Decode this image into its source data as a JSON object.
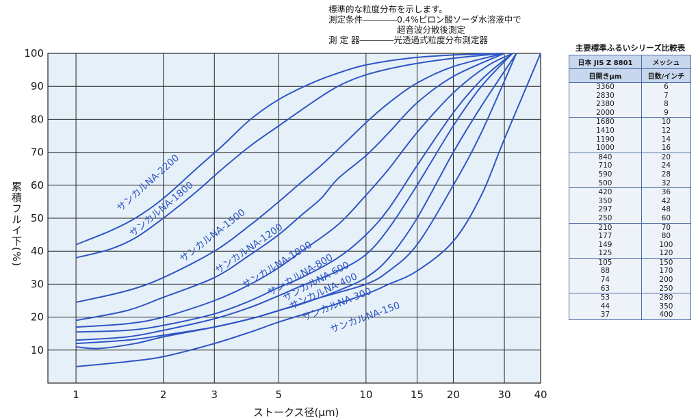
{
  "notes": {
    "line1": "標準的な粒度分布を示します。",
    "line2": "測定条件――――0.4%ピロン酸ソーダ水溶液中で",
    "line3": "　　　　　　　　超音波分散後測定",
    "line4": "測 定 器――――光透過式粒度分布測定器"
  },
  "chart_data": {
    "type": "line",
    "xlabel": "ストークス径(μm)",
    "ylabel": "累積フルイ下(%)",
    "x_scale": "log",
    "xlim": [
      0.8,
      40
    ],
    "ylim": [
      0,
      100
    ],
    "x_ticks": [
      1,
      2,
      3,
      5,
      10,
      15,
      20,
      30,
      40
    ],
    "y_ticks": [
      10,
      20,
      30,
      40,
      50,
      60,
      70,
      80,
      90,
      100
    ],
    "grid": true,
    "colors": {
      "line": "#2f55c4",
      "plot_bg": "#e6f0f8",
      "grid": "#222222"
    },
    "series": [
      {
        "name": "サンカルNA-2200",
        "points": [
          [
            1,
            42
          ],
          [
            1.3,
            46
          ],
          [
            1.6,
            50
          ],
          [
            2,
            56
          ],
          [
            2.6,
            65
          ],
          [
            3.2,
            72
          ],
          [
            4,
            80
          ],
          [
            5,
            86
          ],
          [
            6.5,
            91
          ],
          [
            8,
            94
          ],
          [
            10,
            96.5
          ],
          [
            14,
            98.5
          ],
          [
            20,
            99.5
          ],
          [
            30,
            100
          ]
        ]
      },
      {
        "name": "サンカルNA-1800",
        "points": [
          [
            1,
            38
          ],
          [
            1.3,
            40.5
          ],
          [
            1.6,
            44
          ],
          [
            2,
            50
          ],
          [
            2.6,
            58
          ],
          [
            3.2,
            65
          ],
          [
            4,
            72
          ],
          [
            5,
            78
          ],
          [
            6.5,
            85
          ],
          [
            8,
            90
          ],
          [
            10,
            93.5
          ],
          [
            14,
            96.5
          ],
          [
            20,
            98.5
          ],
          [
            30,
            100
          ]
        ]
      },
      {
        "name": "サンカルNA-1500",
        "points": [
          [
            1,
            24.5
          ],
          [
            1.5,
            28
          ],
          [
            2,
            32
          ],
          [
            3,
            40
          ],
          [
            4,
            48
          ],
          [
            5,
            55
          ],
          [
            6,
            61
          ],
          [
            7,
            66
          ],
          [
            8.5,
            73
          ],
          [
            10,
            79
          ],
          [
            12,
            85
          ],
          [
            15,
            91
          ],
          [
            20,
            96
          ],
          [
            30,
            100
          ]
        ]
      },
      {
        "name": "サンカルNA-1200",
        "points": [
          [
            1,
            19
          ],
          [
            1.5,
            22
          ],
          [
            2,
            26
          ],
          [
            3,
            32
          ],
          [
            4,
            39
          ],
          [
            5,
            45
          ],
          [
            6,
            51
          ],
          [
            7,
            56
          ],
          [
            8,
            62
          ],
          [
            10,
            69
          ],
          [
            12,
            76
          ],
          [
            15,
            85
          ],
          [
            20,
            93
          ],
          [
            30,
            100
          ]
        ]
      },
      {
        "name": "サンカルNA-1000",
        "points": [
          [
            1,
            17
          ],
          [
            1.5,
            18
          ],
          [
            2,
            20
          ],
          [
            3,
            25
          ],
          [
            4,
            30
          ],
          [
            5,
            35
          ],
          [
            6,
            40
          ],
          [
            8,
            48
          ],
          [
            10,
            57
          ],
          [
            12,
            65
          ],
          [
            15,
            76
          ],
          [
            20,
            88
          ],
          [
            26,
            96
          ],
          [
            32,
            100
          ]
        ]
      },
      {
        "name": "サンカルNA-800",
        "points": [
          [
            1,
            15.5
          ],
          [
            1.5,
            16
          ],
          [
            2,
            17.5
          ],
          [
            3,
            21
          ],
          [
            4,
            25
          ],
          [
            5,
            29
          ],
          [
            6,
            32
          ],
          [
            8,
            38
          ],
          [
            10,
            45
          ],
          [
            12,
            53
          ],
          [
            15,
            66
          ],
          [
            20,
            82
          ],
          [
            25,
            92
          ],
          [
            32,
            100
          ]
        ]
      },
      {
        "name": "サンカルNA-600",
        "points": [
          [
            1,
            13
          ],
          [
            1.5,
            14
          ],
          [
            2,
            16
          ],
          [
            3,
            19.5
          ],
          [
            4,
            23
          ],
          [
            5,
            26.5
          ],
          [
            6,
            29.5
          ],
          [
            8,
            34
          ],
          [
            10,
            39
          ],
          [
            12,
            47
          ],
          [
            15,
            60
          ],
          [
            20,
            78
          ],
          [
            25,
            90
          ],
          [
            32,
            100
          ]
        ]
      },
      {
        "name": "サンカルNA-400",
        "points": [
          [
            1,
            12
          ],
          [
            1.5,
            13
          ],
          [
            2,
            14.5
          ],
          [
            3,
            17
          ],
          [
            4,
            19.5
          ],
          [
            5,
            22
          ],
          [
            6,
            24
          ],
          [
            8,
            28
          ],
          [
            10,
            32
          ],
          [
            12,
            38
          ],
          [
            15,
            50
          ],
          [
            20,
            70
          ],
          [
            25,
            84
          ],
          [
            33,
            100
          ]
        ]
      },
      {
        "name": "サンカルNA-300",
        "points": [
          [
            1,
            11
          ],
          [
            1.2,
            10.5
          ],
          [
            1.6,
            12
          ],
          [
            2,
            14
          ],
          [
            3,
            17
          ],
          [
            4,
            19.5
          ],
          [
            5,
            22
          ],
          [
            7,
            26
          ],
          [
            10,
            30
          ],
          [
            12,
            34
          ],
          [
            15,
            42
          ],
          [
            20,
            60
          ],
          [
            25,
            76
          ],
          [
            33,
            100
          ]
        ]
      },
      {
        "name": "サンカルNA-150",
        "points": [
          [
            1,
            5
          ],
          [
            1.5,
            6.5
          ],
          [
            2,
            8
          ],
          [
            3,
            12
          ],
          [
            4,
            15.5
          ],
          [
            5,
            18.5
          ],
          [
            7,
            22.5
          ],
          [
            10,
            27
          ],
          [
            12,
            30
          ],
          [
            15,
            34
          ],
          [
            20,
            43
          ],
          [
            25,
            57
          ],
          [
            30,
            74
          ],
          [
            40,
            100
          ]
        ]
      }
    ]
  },
  "sieve_table": {
    "title": "主要標準ふるいシリーズ比較表",
    "header1": [
      "日本 JIS Z 8801",
      "メッシュ"
    ],
    "header2": [
      "目開きμm",
      "目数/インチ"
    ],
    "groups": [
      [
        [
          "3360",
          "6"
        ],
        [
          "2830",
          "7"
        ],
        [
          "2380",
          "8"
        ],
        [
          "2000",
          "9"
        ]
      ],
      [
        [
          "1680",
          "10"
        ],
        [
          "1410",
          "12"
        ],
        [
          "1190",
          "14"
        ],
        [
          "1000",
          "16"
        ]
      ],
      [
        [
          "840",
          "20"
        ],
        [
          "710",
          "24"
        ],
        [
          "590",
          "28"
        ],
        [
          "500",
          "32"
        ]
      ],
      [
        [
          "420",
          "36"
        ],
        [
          "350",
          "42"
        ],
        [
          "297",
          "48"
        ],
        [
          "250",
          "60"
        ]
      ],
      [
        [
          "210",
          "70"
        ],
        [
          "177",
          "80"
        ],
        [
          "149",
          "100"
        ],
        [
          "125",
          "120"
        ]
      ],
      [
        [
          "105",
          "150"
        ],
        [
          "88",
          "170"
        ],
        [
          "74",
          "200"
        ],
        [
          "63",
          "250"
        ]
      ],
      [
        [
          "53",
          "280"
        ],
        [
          "44",
          "350"
        ],
        [
          "37",
          "400"
        ]
      ]
    ]
  }
}
